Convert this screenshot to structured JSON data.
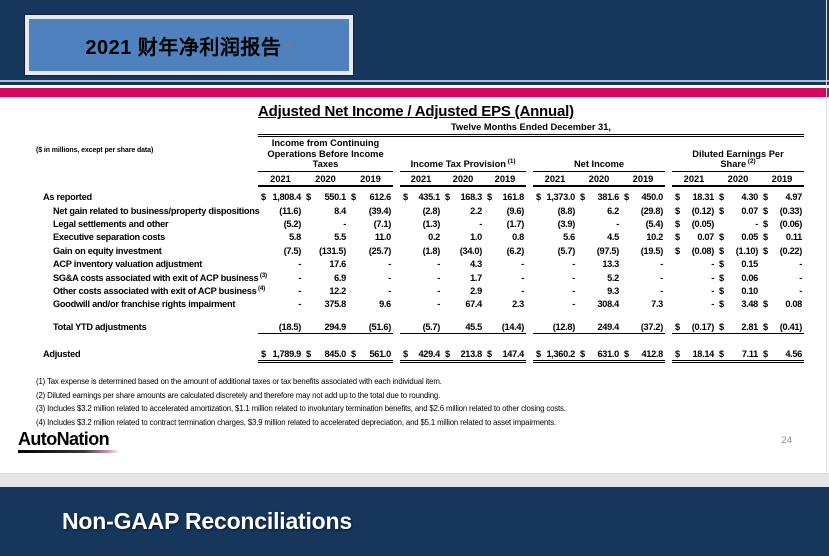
{
  "slide": {
    "title": "2021 财年净利润报告",
    "return_mark": "↵",
    "page_number": "24",
    "logo_text": "AutoNation",
    "footer_title": "Non-GAAP Reconciliations"
  },
  "colors": {
    "navy": "#16365C",
    "steel_blue": "#4E81BD",
    "accent_pink": "#D5075D",
    "gray_strip": "#E5E5E5"
  },
  "table": {
    "title": "Adjusted Net Income / Adjusted EPS (Annual)",
    "period_header": "Twelve Months Ended December 31,",
    "units_note": "($ in millions, except per share data)",
    "years": [
      "2021",
      "2020",
      "2019"
    ],
    "groups": [
      {
        "label": "Income from Continuing Operations Before Income Taxes",
        "sup": ""
      },
      {
        "label": "Income Tax Provision",
        "sup": "(1)"
      },
      {
        "label": "Net Income",
        "sup": ""
      },
      {
        "label": "Diluted Earnings Per Share",
        "sup": "(2)"
      }
    ],
    "rows": [
      {
        "label": "As reported",
        "sup": "",
        "indent": false,
        "type": "first",
        "cells": [
          [
            "$",
            "1,808.4"
          ],
          [
            "$",
            "550.1"
          ],
          [
            "$",
            "612.6"
          ],
          [
            "$",
            "435.1"
          ],
          [
            "$",
            "168.3"
          ],
          [
            "$",
            "161.8"
          ],
          [
            "$",
            "1,373.0"
          ],
          [
            "$",
            "381.6"
          ],
          [
            "$",
            "450.0"
          ],
          [
            "$",
            "18.31"
          ],
          [
            "$",
            "4.30"
          ],
          [
            "$",
            "4.97"
          ]
        ]
      },
      {
        "label": "Net gain related to business/property dispositions",
        "sup": "",
        "indent": true,
        "type": "data",
        "cells": [
          [
            "",
            "(11.6)"
          ],
          [
            "",
            "8.4"
          ],
          [
            "",
            "(39.4)"
          ],
          [
            "",
            "(2.8)"
          ],
          [
            "",
            "2.2"
          ],
          [
            "",
            "(9.6)"
          ],
          [
            "",
            "(8.8)"
          ],
          [
            "",
            "6.2"
          ],
          [
            "",
            "(29.8)"
          ],
          [
            "$",
            "(0.12)"
          ],
          [
            "$",
            "0.07"
          ],
          [
            "$",
            "(0.33)"
          ]
        ]
      },
      {
        "label": "Legal settlements and other",
        "sup": "",
        "indent": true,
        "type": "data",
        "cells": [
          [
            "",
            "(5.2)"
          ],
          [
            "",
            "-"
          ],
          [
            "",
            "(7.1)"
          ],
          [
            "",
            "(1.3)"
          ],
          [
            "",
            "-"
          ],
          [
            "",
            "(1.7)"
          ],
          [
            "",
            "(3.9)"
          ],
          [
            "",
            "-"
          ],
          [
            "",
            "(5.4)"
          ],
          [
            "$",
            "(0.05)"
          ],
          [
            "",
            "-"
          ],
          [
            "$",
            "(0.06)"
          ]
        ]
      },
      {
        "label": "Executive separation costs",
        "sup": "",
        "indent": true,
        "type": "data",
        "cells": [
          [
            "",
            "5.8"
          ],
          [
            "",
            "5.5"
          ],
          [
            "",
            "11.0"
          ],
          [
            "",
            "0.2"
          ],
          [
            "",
            "1.0"
          ],
          [
            "",
            "0.8"
          ],
          [
            "",
            "5.6"
          ],
          [
            "",
            "4.5"
          ],
          [
            "",
            "10.2"
          ],
          [
            "$",
            "0.07"
          ],
          [
            "$",
            "0.05"
          ],
          [
            "$",
            "0.11"
          ]
        ]
      },
      {
        "label": "Gain on equity investment",
        "sup": "",
        "indent": true,
        "type": "data",
        "cells": [
          [
            "",
            "(7.5)"
          ],
          [
            "",
            "(131.5)"
          ],
          [
            "",
            "(25.7)"
          ],
          [
            "",
            "(1.8)"
          ],
          [
            "",
            "(34.0)"
          ],
          [
            "",
            "(6.2)"
          ],
          [
            "",
            "(5.7)"
          ],
          [
            "",
            "(97.5)"
          ],
          [
            "",
            "(19.5)"
          ],
          [
            "$",
            "(0.08)"
          ],
          [
            "$",
            "(1.10)"
          ],
          [
            "$",
            "(0.22)"
          ]
        ]
      },
      {
        "label": "ACP inventory valuation adjustment",
        "sup": "",
        "indent": true,
        "type": "data",
        "cells": [
          [
            "",
            "-"
          ],
          [
            "",
            "17.6"
          ],
          [
            "",
            "-"
          ],
          [
            "",
            "-"
          ],
          [
            "",
            "4.3"
          ],
          [
            "",
            "-"
          ],
          [
            "",
            "-"
          ],
          [
            "",
            "13.3"
          ],
          [
            "",
            "-"
          ],
          [
            "",
            "-"
          ],
          [
            "$",
            "0.15"
          ],
          [
            "",
            "-"
          ]
        ]
      },
      {
        "label": "SG&A costs associated with exit of ACP business",
        "sup": "(3)",
        "indent": true,
        "type": "data",
        "cells": [
          [
            "",
            "-"
          ],
          [
            "",
            "6.9"
          ],
          [
            "",
            "-"
          ],
          [
            "",
            "-"
          ],
          [
            "",
            "1.7"
          ],
          [
            "",
            "-"
          ],
          [
            "",
            "-"
          ],
          [
            "",
            "5.2"
          ],
          [
            "",
            "-"
          ],
          [
            "",
            "-"
          ],
          [
            "$",
            "0.06"
          ],
          [
            "",
            "-"
          ]
        ]
      },
      {
        "label": "Other costs associated with exit of ACP business",
        "sup": "(4)",
        "indent": true,
        "type": "data",
        "cells": [
          [
            "",
            "-"
          ],
          [
            "",
            "12.2"
          ],
          [
            "",
            "-"
          ],
          [
            "",
            "-"
          ],
          [
            "",
            "2.9"
          ],
          [
            "",
            "-"
          ],
          [
            "",
            "-"
          ],
          [
            "",
            "9.3"
          ],
          [
            "",
            "-"
          ],
          [
            "",
            "-"
          ],
          [
            "$",
            "0.10"
          ],
          [
            "",
            "-"
          ]
        ]
      },
      {
        "label": "Goodwill and/or franchise rights impairment",
        "sup": "",
        "indent": true,
        "type": "data",
        "cells": [
          [
            "",
            "-"
          ],
          [
            "",
            "375.8"
          ],
          [
            "",
            "9.6"
          ],
          [
            "",
            "-"
          ],
          [
            "",
            "67.4"
          ],
          [
            "",
            "2.3"
          ],
          [
            "",
            "-"
          ],
          [
            "",
            "308.4"
          ],
          [
            "",
            "7.3"
          ],
          [
            "",
            "-"
          ],
          [
            "$",
            "3.48"
          ],
          [
            "$",
            "0.08"
          ]
        ]
      },
      {
        "label": "Total YTD adjustments",
        "sup": "",
        "indent": true,
        "type": "total",
        "cells": [
          [
            "",
            "(18.5)"
          ],
          [
            "",
            "294.9"
          ],
          [
            "",
            "(51.6)"
          ],
          [
            "",
            "(5.7)"
          ],
          [
            "",
            "45.5"
          ],
          [
            "",
            "(14.4)"
          ],
          [
            "",
            "(12.8)"
          ],
          [
            "",
            "249.4"
          ],
          [
            "",
            "(37.2)"
          ],
          [
            "$",
            "(0.17)"
          ],
          [
            "$",
            "2.81"
          ],
          [
            "$",
            "(0.41)"
          ]
        ]
      },
      {
        "label": "Adjusted",
        "sup": "",
        "indent": false,
        "type": "adjusted",
        "cells": [
          [
            "$",
            "1,789.9"
          ],
          [
            "$",
            "845.0"
          ],
          [
            "$",
            "561.0"
          ],
          [
            "$",
            "429.4"
          ],
          [
            "$",
            "213.8"
          ],
          [
            "$",
            "147.4"
          ],
          [
            "$",
            "1,360.2"
          ],
          [
            "$",
            "631.0"
          ],
          [
            "$",
            "412.8"
          ],
          [
            "$",
            "18.14"
          ],
          [
            "$",
            "7.11"
          ],
          [
            "$",
            "4.56"
          ]
        ]
      }
    ],
    "footnotes": [
      "(1) Tax expense is determined based on the amount of additional taxes or tax benefits associated with each individual item.",
      "(2) Diluted earnings per share amounts are calculated discretely and therefore may not add up to the total due to rounding.",
      "(3) Includes $3.2 million related to accelerated amortization, $1.1 million related to involuntary termination benefits, and $2.6 million related to other closing costs.",
      "(4) Includes $3.2 million related to contract termination charges, $3.9 million related to accelerated depreciation, and $5.1 million related to asset impairments."
    ]
  }
}
